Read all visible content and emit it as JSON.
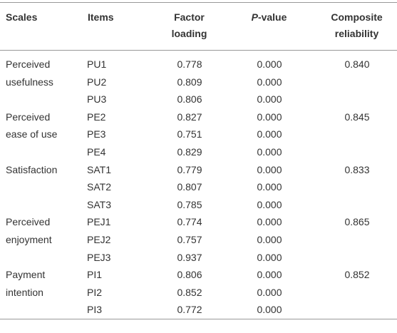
{
  "table": {
    "header": [
      "Scales",
      "Items",
      "Factor loading",
      [
        "P",
        "-value"
      ],
      "Composite reliability"
    ],
    "groups": [
      {
        "scale": "Perceived usefulness",
        "reliability": "0.840",
        "items": [
          [
            "PU1",
            "0.778",
            "0.000"
          ],
          [
            "PU2",
            "0.809",
            "0.000"
          ],
          [
            "PU3",
            "0.806",
            "0.000"
          ]
        ]
      },
      {
        "scale": "Perceived ease of use",
        "reliability": "0.845",
        "items": [
          [
            "PE2",
            "0.827",
            "0.000"
          ],
          [
            "PE3",
            "0.751",
            "0.000"
          ],
          [
            "PE4",
            "0.829",
            "0.000"
          ]
        ]
      },
      {
        "scale": "Satisfaction",
        "reliability": "0.833",
        "items": [
          [
            "SAT1",
            "0.779",
            "0.000"
          ],
          [
            "SAT2",
            "0.807",
            "0.000"
          ],
          [
            "SAT3",
            "0.785",
            "0.000"
          ]
        ]
      },
      {
        "scale": "Perceived enjoyment",
        "reliability": "0.865",
        "items": [
          [
            "PEJ1",
            "0.774",
            "0.000"
          ],
          [
            "PEJ2",
            "0.757",
            "0.000"
          ],
          [
            "PEJ3",
            "0.937",
            "0.000"
          ]
        ]
      },
      {
        "scale": "Payment intention",
        "reliability": "0.852",
        "items": [
          [
            "PI1",
            "0.806",
            "0.000"
          ],
          [
            "PI2",
            "0.852",
            "0.000"
          ],
          [
            "PI3",
            "0.772",
            "0.000"
          ]
        ]
      }
    ]
  }
}
